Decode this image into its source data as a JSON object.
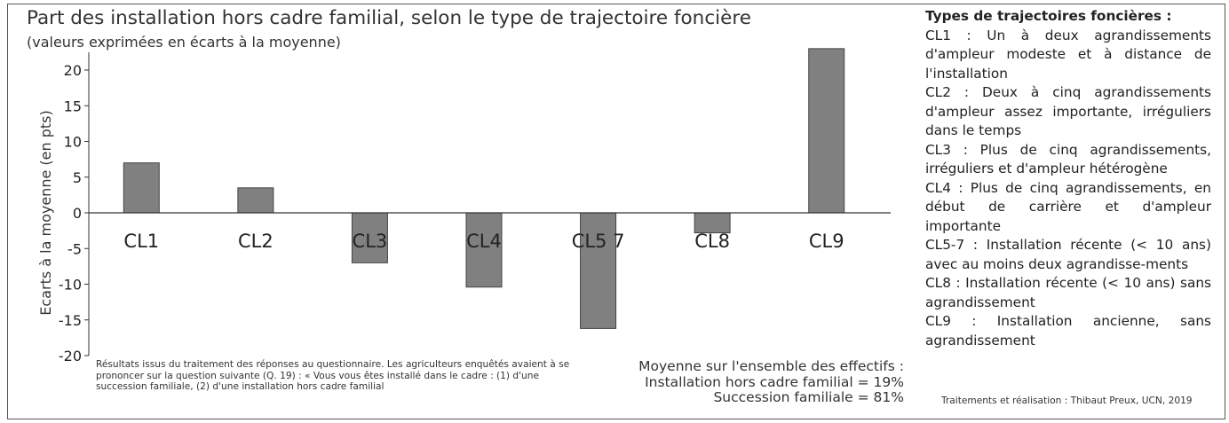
{
  "chart_data": {
    "type": "bar",
    "title": "Part des installation hors cadre familial, selon le type de trajectoire foncière",
    "subtitle": "(valeurs exprimées en écarts à la moyenne)",
    "ylabel": "Ecarts à la moyenne (en pts)",
    "xlabel": "",
    "ylim": [
      -20,
      22.5
    ],
    "yticks": [
      "20",
      "15",
      "10",
      "5",
      "0",
      "-5",
      "-10",
      "-15",
      "-20"
    ],
    "categories": [
      "CL1",
      "CL2",
      "CL3",
      "CL4",
      "CL5 7",
      "CL8",
      "CL9"
    ],
    "values": [
      7,
      3.5,
      -7,
      -10.4,
      -16.2,
      -2.8,
      23
    ],
    "bar_color": "#808080",
    "grid": false
  },
  "note": "Résultats issus du traitement des réponses au questionnaire. Les agriculteurs enquêtés avaient à se prononcer sur la question suivante (Q. 19) : « Vous vous êtes installé dans le cadre : (1) d'une succession familiale, (2) d'une installation hors cadre familial",
  "mean": {
    "line1": "Moyenne sur l'ensemble des effectifs :",
    "line2": "Installation hors cadre familial = 19%",
    "line3": "Succession familiale = 81%"
  },
  "legend": {
    "title": "Types de trajectoires foncières :",
    "items": [
      "CL1 : Un à deux agrandissements d'ampleur modeste et à distance de l'installation",
      "CL2 : Deux à cinq agrandissements d'ampleur assez importante, irréguliers dans le temps",
      "CL3 : Plus de cinq agrandissements, irréguliers et d'ampleur hétérogène",
      "CL4 : Plus de cinq agrandissements, en début de carrière et d'ampleur importante",
      "CL5-7 : Installation récente (< 10 ans) avec au moins deux agrandisse-ments",
      "CL8 : Installation récente (< 10 ans) sans agrandissement",
      "CL9 : Installation ancienne, sans agrandissement"
    ]
  },
  "credit": "Traitements et réalisation : Thibaut Preux, UCN, 2019"
}
